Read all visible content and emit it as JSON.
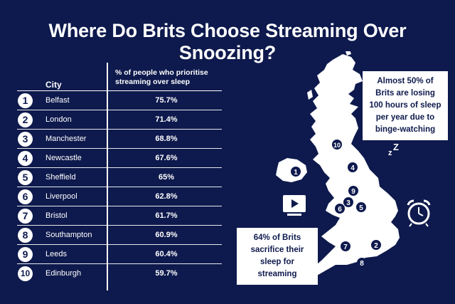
{
  "title": "Where Do Brits Choose Streaming Over Snoozing?",
  "table": {
    "headers": {
      "city": "City",
      "pct": "% of people who prioritise streaming over sleep"
    },
    "rows": [
      {
        "rank": "1",
        "city": "Belfast",
        "pct": "75.7%"
      },
      {
        "rank": "2",
        "city": "London",
        "pct": "71.4%"
      },
      {
        "rank": "3",
        "city": "Manchester",
        "pct": "68.8%"
      },
      {
        "rank": "4",
        "city": "Newcastle",
        "pct": "67.6%"
      },
      {
        "rank": "5",
        "city": "Sheffield",
        "pct": "65%"
      },
      {
        "rank": "6",
        "city": "Liverpool",
        "pct": "62.8%"
      },
      {
        "rank": "7",
        "city": "Bristol",
        "pct": "61.7%"
      },
      {
        "rank": "8",
        "city": "Southampton",
        "pct": "60.9%"
      },
      {
        "rank": "9",
        "city": "Leeds",
        "pct": "60.4%"
      },
      {
        "rank": "10",
        "city": "Edinburgh",
        "pct": "59.7%"
      }
    ]
  },
  "callouts": {
    "top": "Almost 50% of Brits are losing 100 hours of sleep per year due to binge-watching",
    "bottom": "64% of Brits sacrifice their sleep for streaming"
  },
  "map": {
    "markers": [
      "10",
      "1",
      "4",
      "9",
      "3",
      "6",
      "5",
      "7",
      "2",
      "8"
    ]
  },
  "icons": [
    "sleep-moon-icon",
    "play-screen-icon",
    "alarm-clock-icon"
  ],
  "colors": {
    "background": "#0e1a4d",
    "foreground": "#ffffff"
  }
}
